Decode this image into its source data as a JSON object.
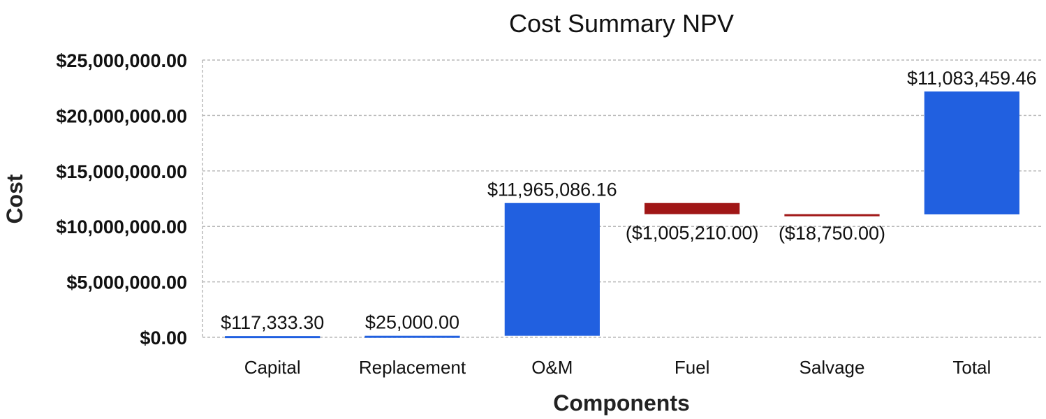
{
  "chart_data": {
    "type": "bar",
    "subtype": "waterfall",
    "title": "Cost Summary NPV",
    "xlabel": "Components",
    "ylabel": "Cost",
    "ylim": [
      0,
      25000000
    ],
    "yticks": [
      0,
      5000000,
      10000000,
      15000000,
      20000000,
      25000000
    ],
    "ytick_labels": [
      "$0.00",
      "$5,000,000.00",
      "$10,000,000.00",
      "$15,000,000.00",
      "$20,000,000.00",
      "$25,000,000.00"
    ],
    "grid": true,
    "categories": [
      "Capital",
      "Replacement",
      "O&M",
      "Fuel",
      "Salvage",
      "Total"
    ],
    "values": [
      117333.3,
      25000.0,
      11965086.16,
      -1005210.0,
      -18750.0,
      11083459.46
    ],
    "bar_start": [
      0,
      117333.3,
      142333.3,
      12107419.46,
      11102209.46,
      11083459.46
    ],
    "bar_end": [
      117333.3,
      142333.3,
      12107419.46,
      11102209.46,
      11083459.46,
      22166918.92
    ],
    "labels": [
      "$117,333.30",
      "$25,000.00",
      "$11,965,086.16",
      "($1,005,210.00)",
      "($18,750.00)",
      "$11,083,459.46"
    ],
    "colors": {
      "increase": "#2160e0",
      "decrease": "#a01616"
    }
  }
}
